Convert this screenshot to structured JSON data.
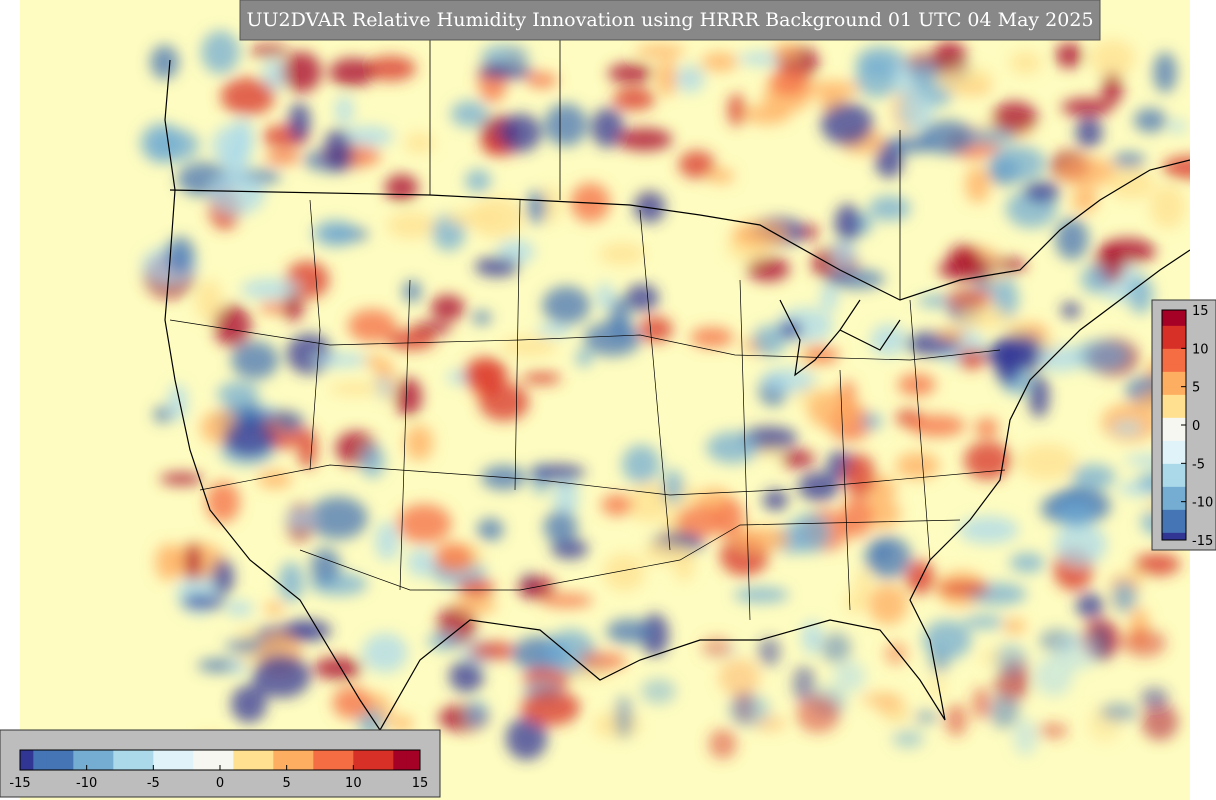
{
  "title": "UU2DVAR Relative Humidity Innovation using HRRR Background 01 UTC 04 May 2025",
  "colormap": [
    "#313695",
    "#4575b4",
    "#74add1",
    "#abd9e9",
    "#e0f3f8",
    "#f7f7f2",
    "#fee090",
    "#fdae61",
    "#f46d43",
    "#d73027",
    "#a50026"
  ],
  "colorbars": [
    {
      "orientation": "vertical",
      "range": [
        -15,
        15
      ],
      "ticks": [
        15,
        10,
        5,
        0,
        -5,
        -10,
        -15
      ]
    },
    {
      "orientation": "horizontal",
      "range": [
        -15,
        15
      ],
      "ticks": [
        -15,
        -10,
        -5,
        0,
        5,
        10,
        15
      ]
    }
  ]
}
